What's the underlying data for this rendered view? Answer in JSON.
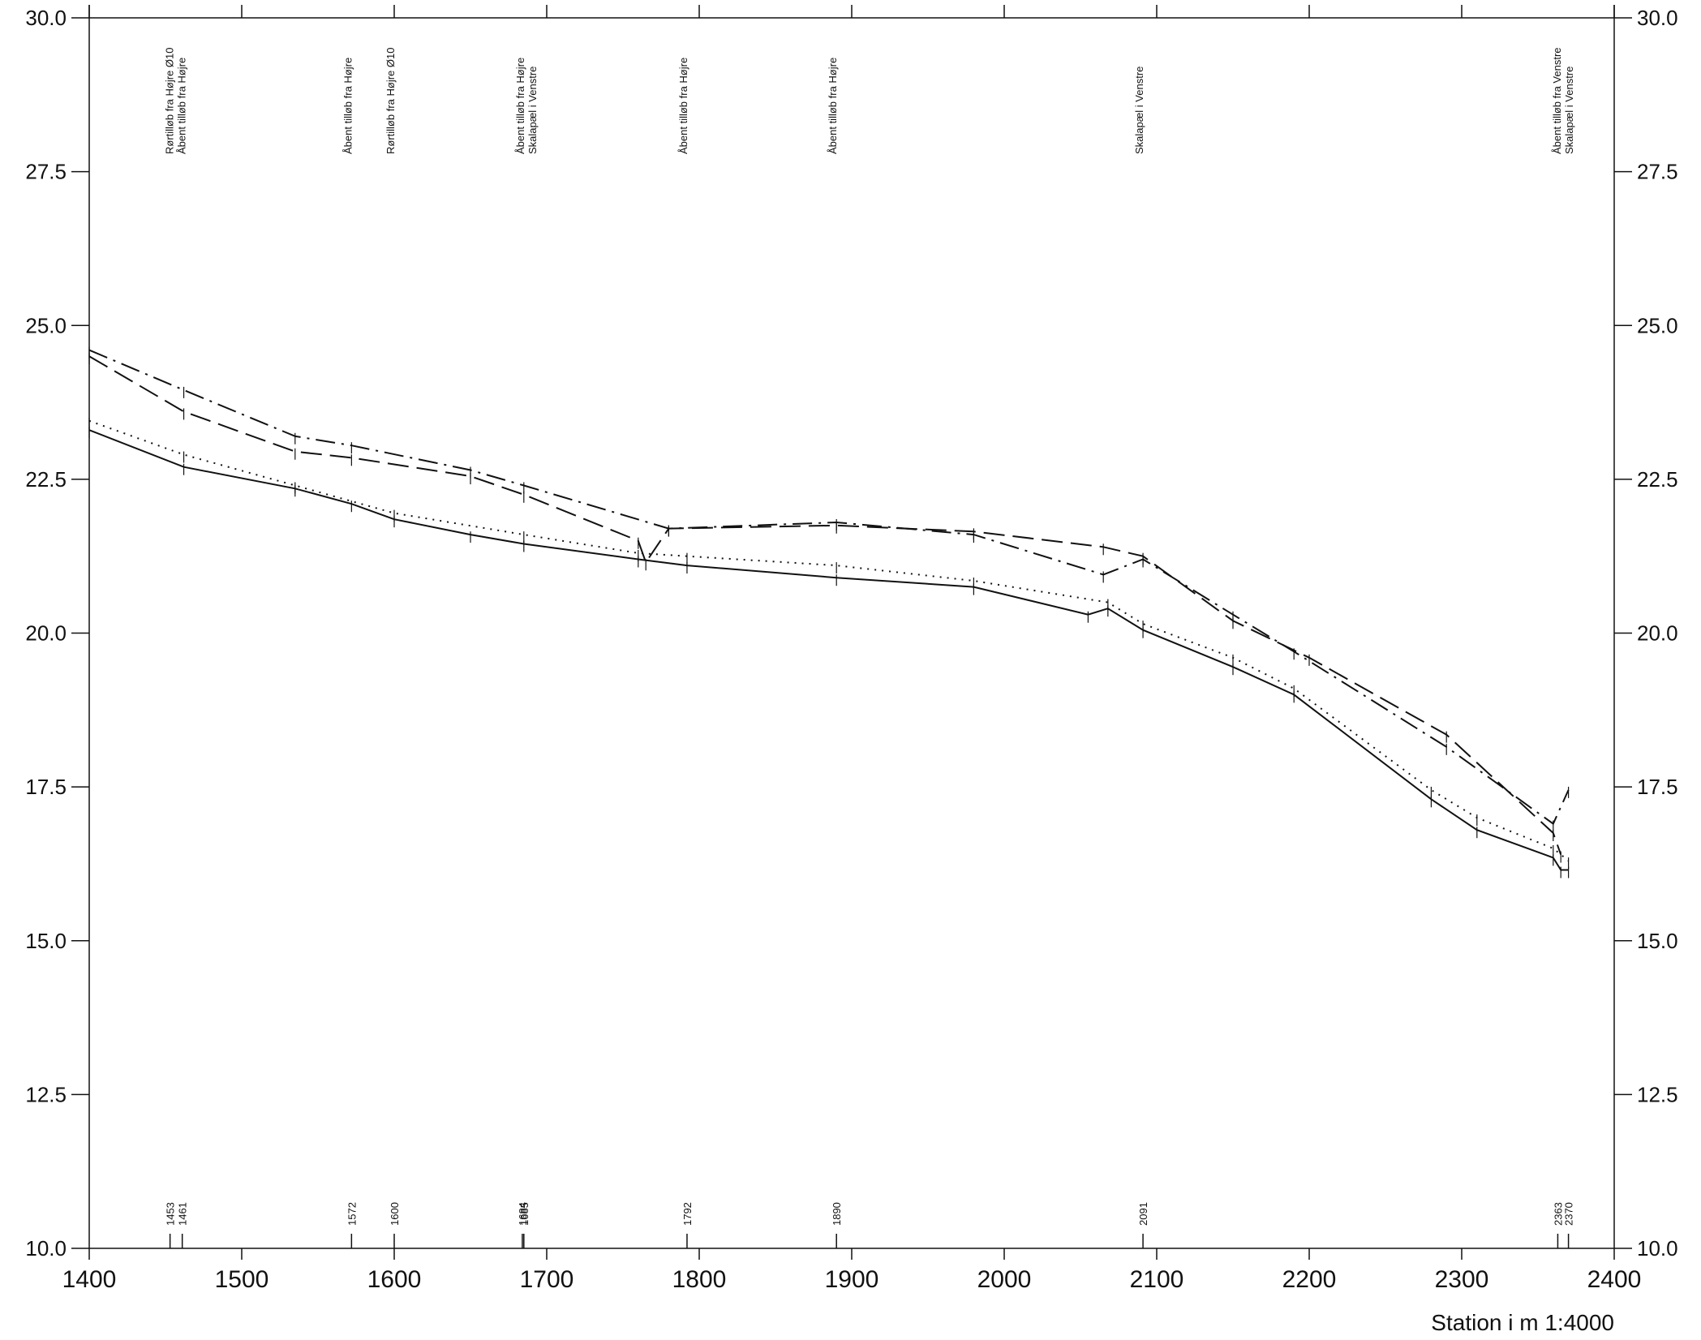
{
  "chart_data": {
    "type": "line",
    "xlabel": "Station i m  1:4000",
    "ylabel": "",
    "xlim": [
      1400,
      2400
    ],
    "ylim": [
      10.0,
      30.0
    ],
    "x_ticks": [
      1400,
      1500,
      1600,
      1700,
      1800,
      1900,
      2000,
      2100,
      2200,
      2300,
      2400
    ],
    "y_ticks": [
      "10.0",
      "12.5",
      "15.0",
      "17.5",
      "20.0",
      "22.5",
      "25.0",
      "27.5",
      "30.0"
    ],
    "y_tick_values": [
      10.0,
      12.5,
      15.0,
      17.5,
      20.0,
      22.5,
      25.0,
      27.5,
      30.0
    ],
    "grid": false,
    "stations": [
      "1453",
      "1461",
      "1572",
      "1600",
      "1684",
      "1685",
      "1792",
      "1890",
      "2091",
      "2363",
      "2370"
    ],
    "station_values": [
      1453,
      1461,
      1572,
      1600,
      1684,
      1685,
      1792,
      1890,
      2091,
      2363,
      2370
    ],
    "annotations": [
      {
        "x": 1455,
        "lines": [
          "Rørtilløb fra Højre Ø10",
          "Åbent tilløb fra Højre"
        ]
      },
      {
        "x": 1572,
        "lines": [
          "Åbent tilløb fra Højre"
        ]
      },
      {
        "x": 1600,
        "lines": [
          "Rørtilløb fra Højre Ø10"
        ]
      },
      {
        "x": 1685,
        "lines": [
          "Åbent tilløb fra Højre",
          "Skalapæl i Venstre"
        ]
      },
      {
        "x": 1792,
        "lines": [
          "Åbent tilløb fra Højre"
        ]
      },
      {
        "x": 1890,
        "lines": [
          "Åbent tilløb fra Højre"
        ]
      },
      {
        "x": 2091,
        "lines": [
          "Skalapæl i Venstre"
        ]
      },
      {
        "x": 2365,
        "lines": [
          "Åbent tilløb fra Venstre",
          "Skalapæl i Venstre"
        ]
      }
    ],
    "series": [
      {
        "style": "solid",
        "x": [
          1400,
          1462,
          1535,
          1572,
          1600,
          1650,
          1685,
          1760,
          1792,
          1890,
          1980,
          2055,
          2068,
          2091,
          2150,
          2190,
          2280,
          2310,
          2360,
          2365,
          2370
        ],
        "y": [
          23.3,
          22.7,
          22.35,
          22.1,
          21.85,
          21.6,
          21.45,
          21.2,
          21.1,
          20.9,
          20.75,
          20.3,
          20.4,
          20.05,
          19.45,
          19.0,
          17.3,
          16.8,
          16.35,
          16.15,
          16.15
        ]
      },
      {
        "style": "dotted",
        "x": [
          1400,
          1462,
          1535,
          1600,
          1685,
          1760,
          1792,
          1890,
          1980,
          2068,
          2091,
          2150,
          2190,
          2280,
          2310,
          2360,
          2370
        ],
        "y": [
          23.45,
          22.9,
          22.4,
          21.95,
          21.6,
          21.3,
          21.25,
          21.1,
          20.85,
          20.5,
          20.15,
          19.6,
          19.1,
          17.45,
          17.0,
          16.5,
          16.3
        ]
      },
      {
        "style": "dashed",
        "x": [
          1400,
          1462,
          1535,
          1572,
          1650,
          1685,
          1760,
          1765,
          1780,
          1890,
          1980,
          2065,
          2091,
          2150,
          2200,
          2290,
          2360,
          2365
        ],
        "y": [
          24.5,
          23.6,
          22.95,
          22.85,
          22.55,
          22.25,
          21.5,
          21.15,
          21.7,
          21.75,
          21.65,
          21.4,
          21.25,
          20.2,
          19.6,
          18.35,
          16.75,
          16.4
        ]
      },
      {
        "style": "dashdot",
        "x": [
          1400,
          1462,
          1535,
          1572,
          1650,
          1685,
          1780,
          1890,
          1980,
          2065,
          2091,
          2150,
          2190,
          2290,
          2360,
          2370
        ],
        "y": [
          24.6,
          23.95,
          23.2,
          23.05,
          22.65,
          22.4,
          21.7,
          21.8,
          21.6,
          20.95,
          21.2,
          20.3,
          19.7,
          18.15,
          16.9,
          17.45
        ]
      }
    ]
  }
}
